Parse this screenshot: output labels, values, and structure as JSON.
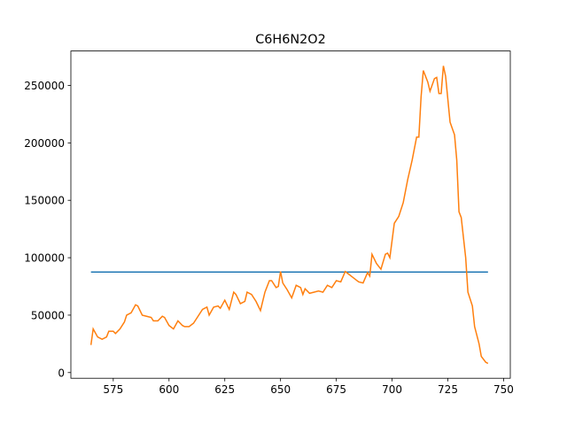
{
  "chart_data": {
    "type": "line",
    "title": "C6H6N2O2",
    "series": [
      {
        "color": "#1f77b4",
        "x": [
          565,
          743
        ],
        "values": [
          87500,
          87500
        ]
      },
      {
        "color": "#ff7f0e",
        "x": [
          565,
          566,
          568,
          570,
          572,
          573,
          575,
          576,
          578,
          580,
          581,
          583,
          585,
          586,
          588,
          590,
          592,
          593,
          595,
          597,
          598,
          600,
          602,
          604,
          606,
          607,
          609,
          611,
          613,
          615,
          617,
          618,
          620,
          622,
          623,
          625,
          627,
          629,
          630,
          632,
          634,
          635,
          637,
          639,
          641,
          643,
          645,
          646,
          648,
          649,
          650,
          651,
          653,
          655,
          657,
          659,
          660,
          661,
          663,
          665,
          667,
          669,
          671,
          673,
          675,
          677,
          679,
          681,
          683,
          685,
          687,
          689,
          690,
          691,
          693,
          695,
          697,
          698,
          699,
          700,
          701,
          703,
          705,
          707,
          709,
          711,
          712,
          713,
          714,
          716,
          717,
          719,
          720,
          721,
          722,
          723,
          724,
          725,
          726,
          728,
          729,
          730,
          731,
          733,
          734,
          736,
          737,
          739,
          740,
          742,
          743
        ],
        "values": [
          24000,
          38000,
          31000,
          29000,
          31000,
          36000,
          36000,
          34000,
          38000,
          44000,
          50000,
          52000,
          59000,
          58000,
          50000,
          49000,
          48000,
          45000,
          45000,
          49000,
          48000,
          41000,
          38000,
          45000,
          41000,
          40000,
          40000,
          43000,
          49000,
          55000,
          57000,
          50000,
          57000,
          58000,
          56000,
          63000,
          55000,
          70000,
          68000,
          60000,
          62000,
          70000,
          68000,
          62000,
          54000,
          70000,
          80000,
          80000,
          74000,
          75000,
          88000,
          78000,
          72000,
          65000,
          76000,
          74000,
          68000,
          73000,
          69000,
          70000,
          71000,
          70000,
          76000,
          74000,
          80000,
          79000,
          88000,
          85000,
          82000,
          79000,
          78000,
          87000,
          84000,
          103000,
          95000,
          90000,
          103000,
          104000,
          100000,
          115000,
          130000,
          136000,
          148000,
          168000,
          185000,
          205000,
          205000,
          240000,
          263000,
          253000,
          245000,
          256000,
          257000,
          243000,
          243000,
          267000,
          258000,
          238000,
          218000,
          207000,
          185000,
          140000,
          135000,
          100000,
          70000,
          58000,
          40000,
          25000,
          14000,
          9000,
          8000
        ]
      }
    ],
    "xlim": [
      556,
      753
    ],
    "ylim": [
      -4950,
      280000
    ],
    "xticks": [
      575,
      600,
      625,
      650,
      675,
      700,
      725,
      750
    ],
    "yticks": [
      0,
      50000,
      100000,
      150000,
      200000,
      250000
    ]
  }
}
